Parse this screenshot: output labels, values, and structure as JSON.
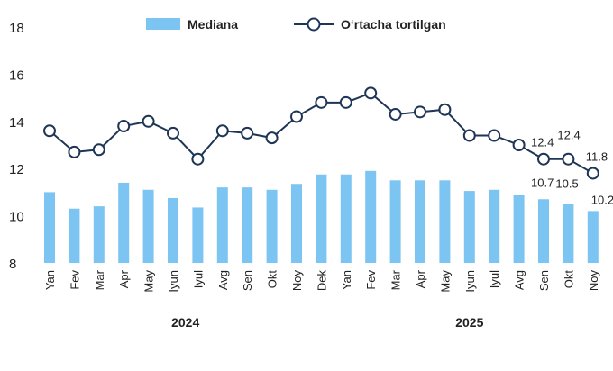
{
  "chart_data": {
    "type": "bar+line",
    "categories": [
      "Yan",
      "Fev",
      "Mar",
      "Apr",
      "May",
      "Iyun",
      "Iyul",
      "Avg",
      "Sen",
      "Okt",
      "Noy",
      "Dek",
      "Yan",
      "Fev",
      "Mar",
      "Apr",
      "May",
      "Iyun",
      "Iyul",
      "Avg",
      "Sen",
      "Okt",
      "Noy"
    ],
    "year_groups": [
      {
        "label": "2024",
        "start": 0,
        "end": 11
      },
      {
        "label": "2025",
        "start": 12,
        "end": 22
      }
    ],
    "series": [
      {
        "name": "Mediana",
        "type": "bar",
        "color": "#7cc4f2",
        "values": [
          11.0,
          10.3,
          10.4,
          11.4,
          11.1,
          10.75,
          10.35,
          11.2,
          11.2,
          11.1,
          11.35,
          11.75,
          11.75,
          11.9,
          11.5,
          11.5,
          11.5,
          11.05,
          11.1,
          10.9,
          10.7,
          10.5,
          10.2
        ],
        "data_labels": {
          "20": "10.7",
          "21": "10.5",
          "22": "10.2"
        }
      },
      {
        "name": "O‘rtacha tortilgan",
        "type": "line",
        "color": "#1e3556",
        "values": [
          13.6,
          12.7,
          12.8,
          13.8,
          14.0,
          13.5,
          12.4,
          13.6,
          13.5,
          13.3,
          14.2,
          14.8,
          14.8,
          15.2,
          14.3,
          14.4,
          14.5,
          13.4,
          13.4,
          13.0,
          12.4,
          12.4,
          11.8
        ],
        "data_labels": {
          "20": "12.4",
          "21": "12.4",
          "22": "11.8"
        }
      }
    ],
    "ylim": [
      8,
      18
    ],
    "yticks": [
      "8",
      "10",
      "12",
      "14",
      "16",
      "18"
    ],
    "grid": false,
    "legend": "top"
  }
}
